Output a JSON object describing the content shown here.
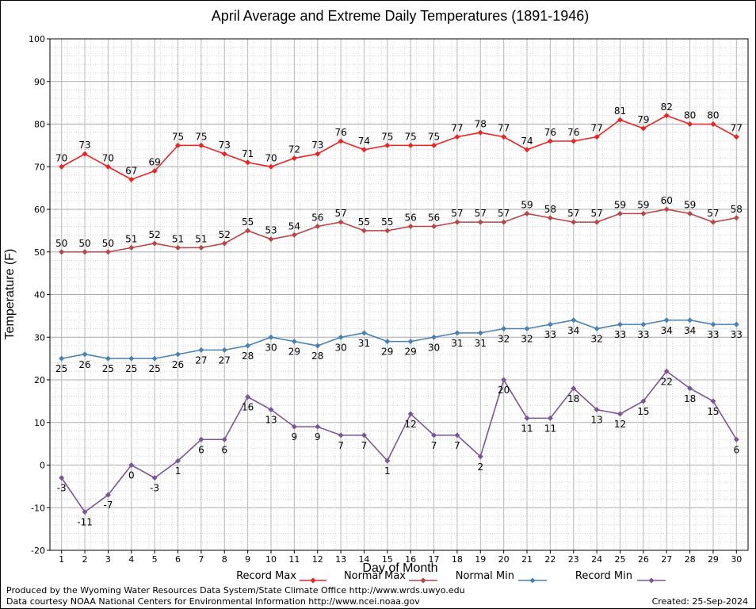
{
  "chart_data": {
    "type": "line",
    "title": "April Average and Extreme Daily Temperatures (1891-1946)",
    "xlabel": "Day of Month",
    "ylabel": "Temperature (F)",
    "ylim": [
      -20,
      100
    ],
    "yticks": [
      "-20",
      "-10",
      "0",
      "10",
      "20",
      "30",
      "40",
      "50",
      "60",
      "70",
      "80",
      "90",
      "100"
    ],
    "x": [
      "1",
      "2",
      "3",
      "4",
      "5",
      "6",
      "7",
      "8",
      "9",
      "10",
      "11",
      "12",
      "13",
      "14",
      "15",
      "16",
      "17",
      "18",
      "19",
      "20",
      "21",
      "22",
      "23",
      "24",
      "25",
      "26",
      "27",
      "28",
      "29",
      "30"
    ],
    "grid": true,
    "legend_position": "bottom",
    "series": [
      {
        "name": "Record Max",
        "color": "#ee2222",
        "label_position": "above",
        "values": [
          70,
          73,
          70,
          67,
          69,
          75,
          75,
          73,
          71,
          70,
          72,
          73,
          76,
          74,
          75,
          75,
          75,
          77,
          78,
          77,
          74,
          76,
          76,
          77,
          81,
          79,
          82,
          80,
          80,
          77
        ]
      },
      {
        "name": "Normal Max",
        "color": "#bb4444",
        "label_position": "above",
        "values": [
          50,
          50,
          50,
          51,
          52,
          51,
          51,
          52,
          55,
          53,
          54,
          56,
          57,
          55,
          55,
          56,
          56,
          57,
          57,
          57,
          59,
          58,
          57,
          57,
          59,
          59,
          60,
          59,
          57,
          58
        ]
      },
      {
        "name": "Normal Min",
        "color": "#4682b4",
        "label_position": "below",
        "values": [
          25,
          26,
          25,
          25,
          25,
          26,
          27,
          27,
          28,
          30,
          29,
          28,
          30,
          31,
          29,
          29,
          30,
          31,
          31,
          32,
          32,
          33,
          34,
          32,
          33,
          33,
          34,
          34,
          33,
          33
        ]
      },
      {
        "name": "Record Min",
        "color": "#7b559a",
        "label_position": "below",
        "values": [
          -3,
          -11,
          -7,
          0,
          -3,
          1,
          6,
          6,
          16,
          13,
          9,
          9,
          7,
          7,
          1,
          12,
          7,
          7,
          2,
          20,
          11,
          11,
          18,
          13,
          12,
          15,
          22,
          18,
          15,
          6
        ]
      }
    ]
  },
  "footer": {
    "produced_by": "Produced by the Wyoming Water Resources Data System/State Climate Office http://www.wrds.uwyo.edu",
    "courtesy": "Data courtesy NOAA National Centers for Environmental Information http://www.ncei.noaa.gov",
    "created": "Created: 25-Sep-2024"
  }
}
